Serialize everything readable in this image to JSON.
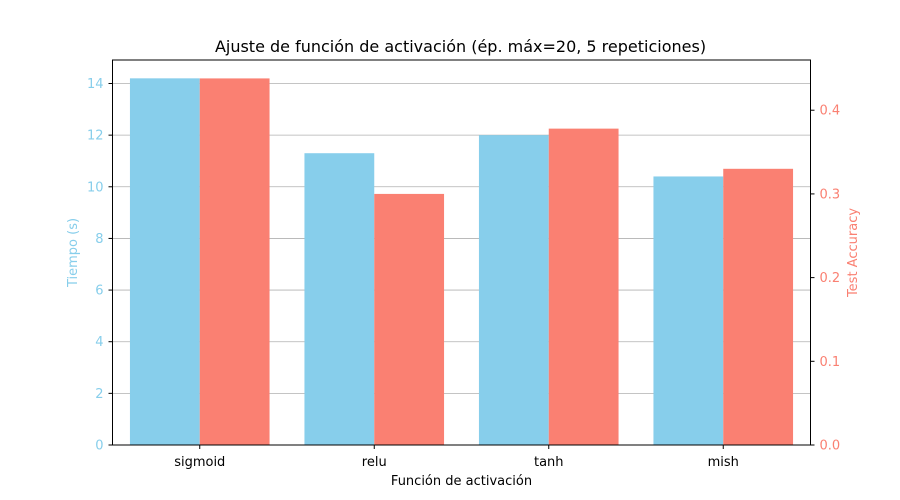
{
  "chart_data": {
    "type": "bar",
    "title": "Ajuste de función de activación (ép. máx=20, 5 repeticiones)",
    "xlabel": "Función de activación",
    "categories": [
      "sigmoid",
      "relu",
      "tanh",
      "mish"
    ],
    "grid": "horizontal (left axis)",
    "series": [
      {
        "name": "Tiempo (s)",
        "axis": "left",
        "color": "#87CEEB",
        "values": [
          14.2,
          11.3,
          12.0,
          10.4
        ]
      },
      {
        "name": "Test Accuracy",
        "axis": "right",
        "color": "#FA8072",
        "values": [
          0.438,
          0.3,
          0.378,
          0.33
        ]
      }
    ],
    "y_left": {
      "label": "Tiempo (s)",
      "color": "#87CEEB",
      "lim": [
        0,
        14.91
      ],
      "ticks": [
        0,
        2,
        4,
        6,
        8,
        10,
        12,
        14
      ]
    },
    "y_right": {
      "label": "Test Accuracy",
      "color": "#FA8072",
      "lim": [
        0,
        0.46
      ],
      "ticks": [
        0.0,
        0.1,
        0.2,
        0.3,
        0.4
      ],
      "tick_labels": [
        "0.0",
        "0.1",
        "0.2",
        "0.3",
        "0.4"
      ]
    }
  }
}
